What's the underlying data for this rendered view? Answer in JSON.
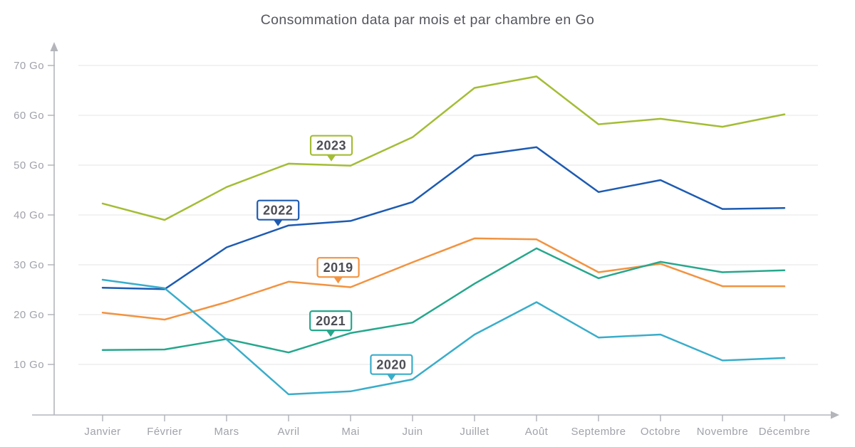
{
  "title": "Consommation data par mois et par chambre en Go",
  "axes": {
    "y_tick_labels": [
      "70 Go",
      "60 Go",
      "50 Go",
      "40 Go",
      "30 Go",
      "20 Go",
      "10 Go"
    ],
    "x_tick_labels": [
      "Janvier",
      "Février",
      "Mars",
      "Avril",
      "Mai",
      "Juin",
      "Juillet",
      "Août",
      "Septembre",
      "Octobre",
      "Novembre",
      "Décembre"
    ]
  },
  "colors": {
    "axis": "#b4b5bb",
    "gridline": "#ededef",
    "tick_text": "#a0a2aa",
    "title_text": "#55565e",
    "annotation_text": "#4d4e55",
    "background": "#ffffff"
  },
  "chart_data": {
    "type": "line",
    "title": "Consommation data par mois et par chambre en Go",
    "xlabel": "",
    "ylabel": "Go",
    "ylim": [
      0,
      74
    ],
    "grid": true,
    "legend_position": "inline-boxed-labels",
    "categories": [
      "Janvier",
      "Février",
      "Mars",
      "Avril",
      "Mai",
      "Juin",
      "Juillet",
      "Août",
      "Septembre",
      "Octobre",
      "Novembre",
      "Décembre"
    ],
    "series": [
      {
        "name": "2023",
        "color": "#a3bd35",
        "values": [
          42.3,
          39.0,
          45.6,
          50.3,
          49.9,
          55.6,
          65.5,
          67.8,
          58.2,
          59.3,
          57.7,
          60.2
        ]
      },
      {
        "name": "2022",
        "color": "#1d5bb2",
        "values": [
          25.4,
          25.1,
          33.5,
          37.9,
          38.8,
          42.6,
          51.9,
          53.6,
          44.6,
          47.0,
          41.2,
          41.4
        ]
      },
      {
        "name": "2019",
        "color": "#f29340",
        "values": [
          20.4,
          19.0,
          22.5,
          26.6,
          25.5,
          30.5,
          35.3,
          35.1,
          28.5,
          30.2,
          25.7,
          25.7
        ]
      },
      {
        "name": "2021",
        "color": "#26a78c",
        "values": [
          12.9,
          13.0,
          15.1,
          12.4,
          16.3,
          18.4,
          26.2,
          33.3,
          27.3,
          30.6,
          28.5,
          28.9
        ]
      },
      {
        "name": "2020",
        "color": "#39adca",
        "values": [
          27.0,
          25.3,
          15.0,
          4.0,
          4.6,
          7.0,
          16.0,
          22.5,
          15.4,
          16.0,
          10.8,
          11.3
        ]
      }
    ],
    "annotations": [
      {
        "label": "2023",
        "series": "2023",
        "month_index": 3.69,
        "anchor_go": 50.9
      },
      {
        "label": "2022",
        "series": "2022",
        "month_index": 2.83,
        "anchor_go": 37.9
      },
      {
        "label": "2019",
        "series": "2019",
        "month_index": 3.8,
        "anchor_go": 26.4
      },
      {
        "label": "2021",
        "series": "2021",
        "month_index": 3.68,
        "anchor_go": 15.7
      },
      {
        "label": "2020",
        "series": "2020",
        "month_index": 4.66,
        "anchor_go": 6.9
      }
    ]
  }
}
